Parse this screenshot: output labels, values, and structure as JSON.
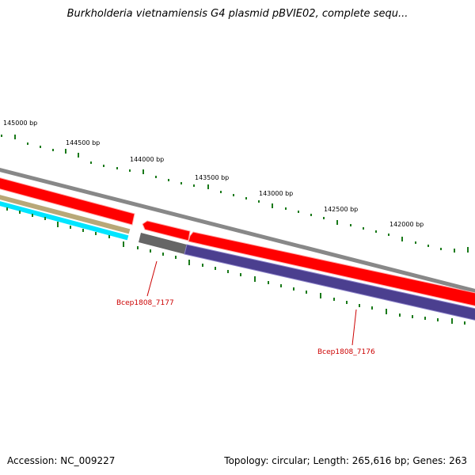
{
  "title": "Burkholderia vietnamiensis G4 plasmid pBVIE02, complete sequ...",
  "footer": {
    "accession": "Accession: NC_009227",
    "summary": "Topology: circular; Length: 265,616 bp; Genes: 263"
  },
  "ruler_labels": [
    "145000 bp",
    "144500 bp",
    "144000 bp",
    "143500 bp",
    "143000 bp",
    "142500 bp",
    "142000 bp"
  ],
  "gene_labels": [
    "Bcep1808_7177",
    "Bcep1808_7176"
  ],
  "colors": {
    "backbone": "#888888",
    "cds_forward": "#ff0000",
    "cds_reverse": "#ff0000",
    "gene_block": "#4b3f8f",
    "gene_gray": "#666666",
    "track_tan": "#b8a878",
    "track_cyan": "#00e5ff",
    "tick": "#1a7a1a",
    "label_red": "#cc0000"
  }
}
